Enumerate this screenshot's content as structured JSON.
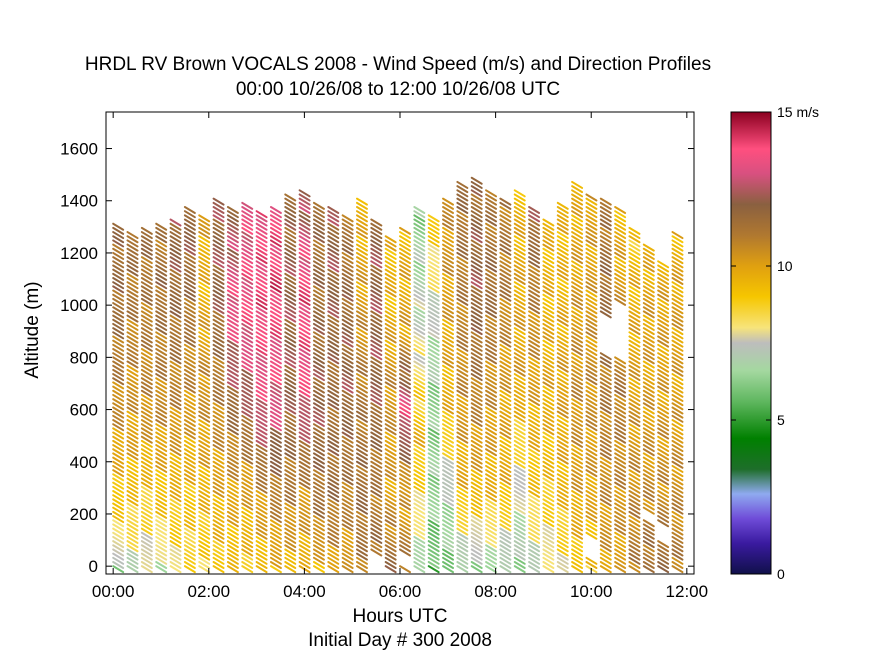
{
  "chart_data": {
    "type": "scatter",
    "title": "HRDL RV Brown VOCALS 2008 - Wind Speed (m/s) and Direction Profiles",
    "subtitle": "00:00 10/26/08 to 12:00 10/26/08  UTC",
    "xlabel": "Hours UTC",
    "xlabel2": "Initial Day # 300  2008",
    "ylabel": "Altitude (m)",
    "xlim": [
      -0.15,
      12.15
    ],
    "ylim": [
      -30,
      1740
    ],
    "xticks": [
      "00:00",
      "02:00",
      "04:00",
      "06:00",
      "08:00",
      "10:00",
      "12:00"
    ],
    "xtick_values": [
      0,
      2,
      4,
      6,
      8,
      10,
      12
    ],
    "yticks": [
      "0",
      "200",
      "400",
      "600",
      "800",
      "1000",
      "1200",
      "1400",
      "1600"
    ],
    "ytick_values": [
      0,
      200,
      400,
      600,
      800,
      1000,
      1200,
      1400,
      1600
    ],
    "colorbar": {
      "min": 0,
      "max": 15,
      "labels": [
        "15 m/s",
        "10",
        "5",
        "0"
      ],
      "label_values": [
        15,
        10,
        5,
        0
      ],
      "stops": [
        {
          "v": 0,
          "c": "#10104a"
        },
        {
          "v": 1,
          "c": "#3a1aa0"
        },
        {
          "v": 1.8,
          "c": "#6f4cd8"
        },
        {
          "v": 2.6,
          "c": "#8faaf0"
        },
        {
          "v": 3.4,
          "c": "#1e6e2a"
        },
        {
          "v": 4.4,
          "c": "#008000"
        },
        {
          "v": 5.6,
          "c": "#5fb75f"
        },
        {
          "v": 6.6,
          "c": "#a4d8a0"
        },
        {
          "v": 7.5,
          "c": "#bdbdbd"
        },
        {
          "v": 8,
          "c": "#f7e47a"
        },
        {
          "v": 9,
          "c": "#f6c600"
        },
        {
          "v": 10,
          "c": "#e0a010"
        },
        {
          "v": 11,
          "c": "#b07830"
        },
        {
          "v": 12,
          "c": "#8a6040"
        },
        {
          "v": 13,
          "c": "#d85080"
        },
        {
          "v": 13.8,
          "c": "#ff4f7f"
        },
        {
          "v": 15,
          "c": "#8b0020"
        }
      ]
    },
    "profiles": [
      {
        "t": 0.0,
        "top": 1320,
        "speeds": [
          [
            0,
            6.5
          ],
          [
            150,
            8.5
          ],
          [
            600,
            10.5
          ],
          [
            1000,
            11.5
          ],
          [
            1320,
            11.5
          ]
        ]
      },
      {
        "t": 0.3,
        "top": 1290,
        "speeds": [
          [
            0,
            7
          ],
          [
            150,
            8.5
          ],
          [
            500,
            10
          ],
          [
            1000,
            11
          ],
          [
            1290,
            11.5
          ]
        ]
      },
      {
        "t": 0.6,
        "top": 1310,
        "speeds": [
          [
            0,
            7.5
          ],
          [
            200,
            8.5
          ],
          [
            600,
            10.5
          ],
          [
            1000,
            11
          ],
          [
            1310,
            11.5
          ]
        ]
      },
      {
        "t": 0.9,
        "top": 1320,
        "speeds": [
          [
            0,
            7
          ],
          [
            200,
            8.8
          ],
          [
            600,
            10.5
          ],
          [
            1100,
            11.5
          ],
          [
            1320,
            11
          ]
        ]
      },
      {
        "t": 1.2,
        "top": 1340,
        "speeds": [
          [
            0,
            8
          ],
          [
            200,
            9
          ],
          [
            600,
            10.5
          ],
          [
            1000,
            11.5
          ],
          [
            1340,
            12
          ]
        ]
      },
      {
        "t": 1.5,
        "top": 1380,
        "speeds": [
          [
            0,
            8.5
          ],
          [
            200,
            9
          ],
          [
            700,
            10.5
          ],
          [
            1100,
            11.5
          ],
          [
            1380,
            12
          ]
        ]
      },
      {
        "t": 1.8,
        "top": 1350,
        "speeds": [
          [
            0,
            8.5
          ],
          [
            300,
            9.5
          ],
          [
            700,
            10.5
          ],
          [
            1100,
            9.5
          ],
          [
            1350,
            10
          ]
        ]
      },
      {
        "t": 2.1,
        "top": 1420,
        "speeds": [
          [
            0,
            9
          ],
          [
            300,
            9.8
          ],
          [
            700,
            11
          ],
          [
            1100,
            12
          ],
          [
            1420,
            12
          ]
        ]
      },
      {
        "t": 2.4,
        "top": 1380,
        "speeds": [
          [
            0,
            9
          ],
          [
            300,
            10
          ],
          [
            700,
            12
          ],
          [
            1000,
            13.5
          ],
          [
            1380,
            12
          ]
        ]
      },
      {
        "t": 2.7,
        "top": 1400,
        "speeds": [
          [
            0,
            9
          ],
          [
            300,
            10
          ],
          [
            700,
            12.5
          ],
          [
            1000,
            13.6
          ],
          [
            1400,
            13
          ]
        ]
      },
      {
        "t": 3.0,
        "top": 1370,
        "speeds": [
          [
            0,
            9.2
          ],
          [
            300,
            10.5
          ],
          [
            600,
            13
          ],
          [
            1000,
            13.8
          ],
          [
            1370,
            13.5
          ]
        ]
      },
      {
        "t": 3.3,
        "top": 1380,
        "speeds": [
          [
            0,
            9.5
          ],
          [
            300,
            11
          ],
          [
            600,
            13
          ],
          [
            1100,
            14
          ],
          [
            1380,
            13.5
          ]
        ]
      },
      {
        "t": 3.6,
        "top": 1430,
        "speeds": [
          [
            0,
            9.5
          ],
          [
            300,
            11
          ],
          [
            700,
            12
          ],
          [
            1100,
            12
          ],
          [
            1430,
            11.5
          ]
        ]
      },
      {
        "t": 3.9,
        "top": 1440,
        "speeds": [
          [
            0,
            9.5
          ],
          [
            300,
            10.5
          ],
          [
            700,
            13.5
          ],
          [
            1100,
            13.8
          ],
          [
            1440,
            12
          ]
        ]
      },
      {
        "t": 4.2,
        "top": 1400,
        "speeds": [
          [
            0,
            9.5
          ],
          [
            200,
            11
          ],
          [
            600,
            12
          ],
          [
            1000,
            11.5
          ],
          [
            1400,
            11.5
          ]
        ]
      },
      {
        "t": 4.5,
        "top": 1390,
        "speeds": [
          [
            0,
            10
          ],
          [
            300,
            11.5
          ],
          [
            700,
            11.5
          ],
          [
            1100,
            12
          ],
          [
            1390,
            12
          ]
        ]
      },
      {
        "t": 4.8,
        "top": 1350,
        "speeds": [
          [
            0,
            10
          ],
          [
            300,
            11
          ],
          [
            700,
            12
          ],
          [
            1100,
            11.5
          ],
          [
            1350,
            11
          ]
        ]
      },
      {
        "t": 5.1,
        "top": 1420,
        "speeds": [
          [
            0,
            11
          ],
          [
            300,
            11.5
          ],
          [
            700,
            11
          ],
          [
            1100,
            10
          ],
          [
            1420,
            9.5
          ]
        ]
      },
      {
        "t": 5.4,
        "top": 1330,
        "speeds": [
          [
            0,
            11.5
          ],
          [
            300,
            11
          ],
          [
            700,
            12
          ],
          [
            1000,
            12
          ],
          [
            1330,
            12
          ]
        ]
      },
      {
        "t": 5.7,
        "top": 1270,
        "speeds": [
          [
            0,
            11.5
          ],
          [
            300,
            10
          ],
          [
            700,
            10.5
          ],
          [
            1000,
            9.5
          ],
          [
            1270,
            9.5
          ]
        ]
      },
      {
        "t": 6.0,
        "top": 1310,
        "speeds": [
          [
            0,
            11
          ],
          [
            300,
            10
          ],
          [
            600,
            13.5
          ],
          [
            900,
            10
          ],
          [
            1310,
            9.5
          ]
        ]
      },
      {
        "t": 6.3,
        "top": 1390,
        "speeds": [
          [
            0,
            6.5
          ],
          [
            200,
            8
          ],
          [
            500,
            9.5
          ],
          [
            900,
            7.5
          ],
          [
            1390,
            6.2
          ]
        ]
      },
      {
        "t": 6.6,
        "top": 1350,
        "speeds": [
          [
            0,
            5.5
          ],
          [
            300,
            6.5
          ],
          [
            600,
            6.2
          ],
          [
            900,
            7
          ],
          [
            1350,
            9
          ]
        ]
      },
      {
        "t": 6.9,
        "top": 1420,
        "speeds": [
          [
            0,
            6
          ],
          [
            300,
            7
          ],
          [
            600,
            9.5
          ],
          [
            1000,
            10
          ],
          [
            1420,
            10.5
          ]
        ]
      },
      {
        "t": 7.2,
        "top": 1480,
        "speeds": [
          [
            0,
            6.5
          ],
          [
            300,
            9.5
          ],
          [
            700,
            10.5
          ],
          [
            1100,
            11
          ],
          [
            1480,
            11.5
          ]
        ]
      },
      {
        "t": 7.5,
        "top": 1490,
        "speeds": [
          [
            0,
            6.5
          ],
          [
            300,
            9.5
          ],
          [
            700,
            11
          ],
          [
            1100,
            12
          ],
          [
            1490,
            11.5
          ]
        ]
      },
      {
        "t": 7.8,
        "top": 1440,
        "speeds": [
          [
            0,
            6.5
          ],
          [
            300,
            9.5
          ],
          [
            700,
            10.5
          ],
          [
            1100,
            11.5
          ],
          [
            1440,
            11
          ]
        ]
      },
      {
        "t": 8.1,
        "top": 1420,
        "speeds": [
          [
            0,
            6.5
          ],
          [
            300,
            9.5
          ],
          [
            700,
            10
          ],
          [
            1100,
            11
          ],
          [
            1420,
            11
          ]
        ]
      },
      {
        "t": 8.4,
        "top": 1440,
        "speeds": [
          [
            0,
            6.5
          ],
          [
            300,
            7.5
          ],
          [
            700,
            10
          ],
          [
            1100,
            9.8
          ],
          [
            1440,
            9.5
          ]
        ]
      },
      {
        "t": 8.7,
        "top": 1390,
        "speeds": [
          [
            0,
            7
          ],
          [
            300,
            9
          ],
          [
            700,
            10
          ],
          [
            1100,
            11
          ],
          [
            1390,
            12
          ]
        ]
      },
      {
        "t": 9.0,
        "top": 1330,
        "speeds": [
          [
            0,
            7.5
          ],
          [
            300,
            9
          ],
          [
            700,
            9.8
          ],
          [
            1000,
            9.5
          ],
          [
            1330,
            9.5
          ]
        ]
      },
      {
        "t": 9.3,
        "top": 1400,
        "speeds": [
          [
            0,
            8
          ],
          [
            300,
            9.5
          ],
          [
            700,
            10
          ],
          [
            1100,
            9.5
          ],
          [
            1400,
            9.5
          ]
        ]
      },
      {
        "t": 9.6,
        "top": 1480,
        "speeds": [
          [
            0,
            9
          ],
          [
            300,
            10
          ],
          [
            700,
            10.5
          ],
          [
            1100,
            10
          ],
          [
            1480,
            9.5
          ]
        ]
      },
      {
        "t": 9.9,
        "top": 1430,
        "speeds": [
          [
            0,
            9
          ],
          [
            300,
            10
          ],
          [
            700,
            10.5
          ],
          [
            1100,
            10
          ],
          [
            1430,
            10
          ]
        ]
      },
      {
        "t": 10.2,
        "top": 1420,
        "speeds": [
          [
            0,
            10
          ],
          [
            300,
            10.5
          ],
          [
            700,
            11
          ],
          [
            1100,
            11.5
          ],
          [
            1420,
            11
          ]
        ]
      },
      {
        "t": 10.5,
        "top": 1380,
        "speeds": [
          [
            0,
            10
          ],
          [
            300,
            10.5
          ],
          [
            700,
            11
          ],
          [
            1100,
            10
          ],
          [
            1380,
            9.5
          ]
        ]
      },
      {
        "t": 10.8,
        "top": 1310,
        "speeds": [
          [
            0,
            11
          ],
          [
            300,
            10.5
          ],
          [
            700,
            10
          ],
          [
            1100,
            9.5
          ],
          [
            1310,
            8.8
          ]
        ]
      },
      {
        "t": 11.1,
        "top": 1240,
        "speeds": [
          [
            0,
            11.5
          ],
          [
            300,
            10.5
          ],
          [
            700,
            10
          ],
          [
            1000,
            10
          ],
          [
            1240,
            9.5
          ]
        ]
      },
      {
        "t": 11.4,
        "top": 1180,
        "speeds": [
          [
            0,
            11.5
          ],
          [
            300,
            10.5
          ],
          [
            700,
            10
          ],
          [
            1000,
            10
          ],
          [
            1180,
            9.5
          ]
        ]
      },
      {
        "t": 11.7,
        "top": 1290,
        "speeds": [
          [
            0,
            11
          ],
          [
            300,
            10.5
          ],
          [
            700,
            10
          ],
          [
            1000,
            10
          ],
          [
            1290,
            9.5
          ]
        ]
      }
    ],
    "gaps": [
      {
        "t": 5.4,
        "from": 0,
        "to": 60
      },
      {
        "t": 6.0,
        "from": 10,
        "to": 60
      },
      {
        "t": 10.2,
        "from": 820,
        "to": 960
      },
      {
        "t": 10.5,
        "from": 810,
        "to": 1010
      },
      {
        "t": 9.9,
        "from": 40,
        "to": 120
      },
      {
        "t": 11.4,
        "from": 100,
        "to": 160
      },
      {
        "t": 11.1,
        "from": 180,
        "to": 220
      }
    ]
  }
}
